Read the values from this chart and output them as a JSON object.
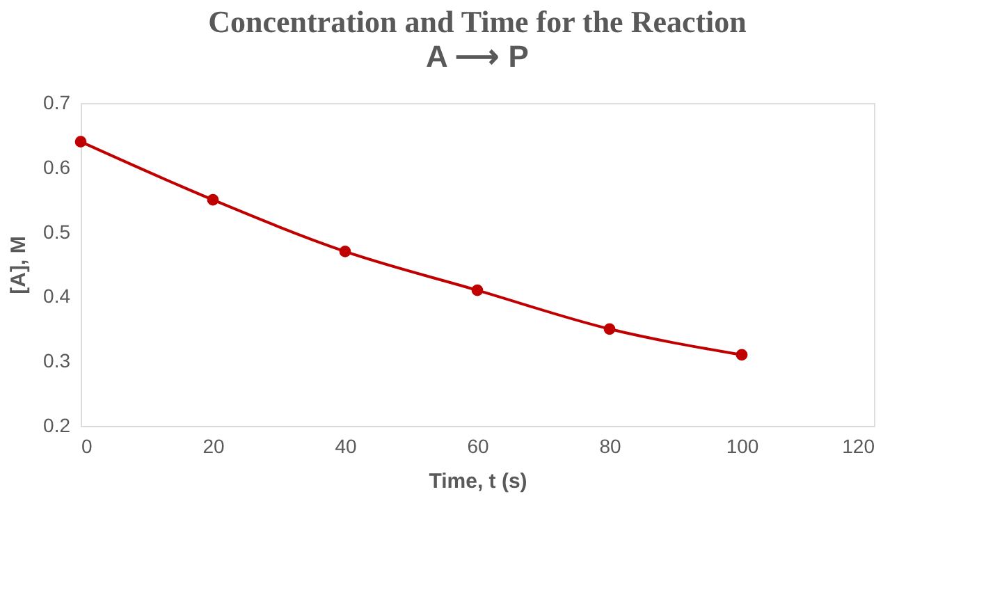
{
  "chart_data": {
    "type": "line",
    "title": "Concentration and Time for the Reaction",
    "subtitle": "A ⟶ P",
    "xlabel": "Time, t (s)",
    "ylabel": "[A], M",
    "x": [
      0,
      20,
      40,
      60,
      80,
      100
    ],
    "series": [
      {
        "color": "#c00000",
        "values": [
          0.64,
          0.55,
          0.47,
          0.41,
          0.35,
          0.31
        ]
      }
    ],
    "xlim": [
      0,
      120
    ],
    "xticks": [
      0,
      20,
      40,
      60,
      80,
      100,
      120
    ],
    "ylim": [
      0.2,
      0.7
    ],
    "yticks": [
      0.2,
      0.3,
      0.4,
      0.5,
      0.6,
      0.7
    ],
    "marker": "circle",
    "line_style": "solid",
    "grid": false
  }
}
